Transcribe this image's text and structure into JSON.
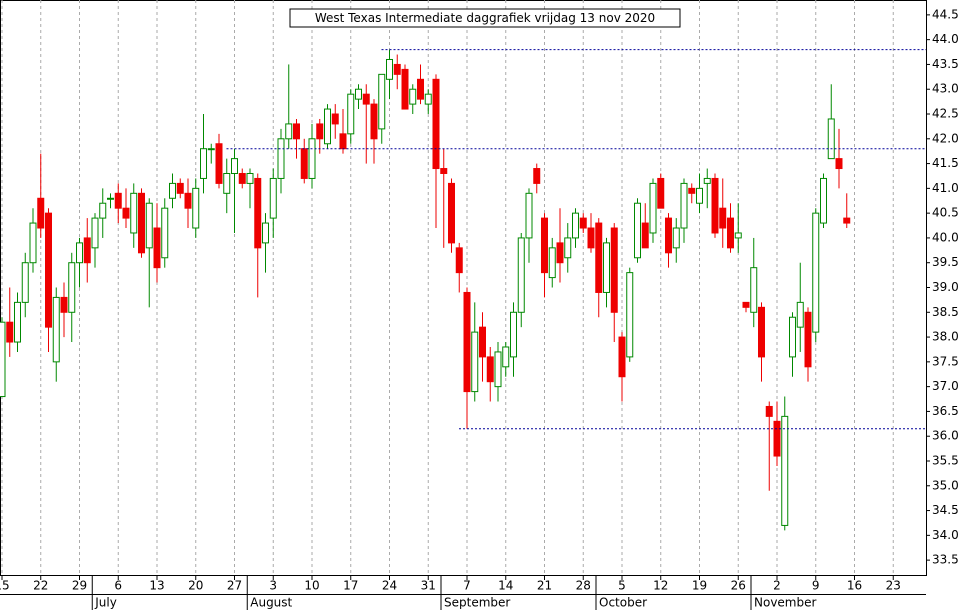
{
  "chart_data": {
    "type": "candlestick",
    "title": "West Texas Intermediate daggrafiek vrijdag 13 nov 2020",
    "categories": [
      "15",
      null,
      null,
      null,
      null,
      "22",
      null,
      null,
      null,
      null,
      "29",
      null,
      null,
      null,
      null,
      "6",
      null,
      null,
      null,
      null,
      "13",
      null,
      null,
      null,
      null,
      "20",
      null,
      null,
      null,
      null,
      "27",
      null,
      null,
      null,
      null,
      "3",
      null,
      null,
      null,
      null,
      "10",
      null,
      null,
      null,
      null,
      "17",
      null,
      null,
      null,
      null,
      "24",
      null,
      null,
      null,
      null,
      "31",
      null,
      null,
      null,
      null,
      "7",
      null,
      null,
      null,
      null,
      "14",
      null,
      null,
      null,
      null,
      "21",
      null,
      null,
      null,
      null,
      "28",
      null,
      null,
      null,
      null,
      "5",
      null,
      null,
      null,
      null,
      "12",
      null,
      null,
      null,
      null,
      "19",
      null,
      null,
      null,
      null,
      "26",
      null,
      null,
      null,
      null,
      "2",
      null,
      null,
      null,
      null,
      "9",
      null,
      null,
      null,
      null,
      "16",
      null,
      null,
      null,
      null,
      "23",
      null,
      null,
      null
    ],
    "months": [
      "July",
      "August",
      "September",
      "October",
      "November"
    ],
    "open": [
      36.8,
      38.3,
      37.9,
      38.7,
      39.5,
      40.8,
      40.5,
      37.5,
      38.8,
      38.5,
      39.5,
      40.0,
      39.8,
      40.4,
      40.8,
      40.9,
      40.6,
      40.1,
      40.9,
      39.8,
      40.2,
      39.6,
      40.8,
      41.1,
      40.9,
      40.2,
      41.2,
      41.8,
      41.9,
      40.9,
      41.3,
      41.3,
      41.1,
      41.2,
      39.9,
      40.4,
      41.2,
      42.0,
      42.3,
      41.8,
      41.2,
      42.3,
      41.9,
      42.5,
      42.1,
      42.1,
      42.8,
      42.9,
      42.7,
      42.2,
      43.2,
      43.5,
      43.4,
      42.7,
      43.2,
      42.7,
      43.2,
      41.4,
      41.1,
      39.8,
      38.9,
      36.9,
      38.2,
      37.6,
      37.0,
      37.4,
      37.6,
      38.5,
      40.0,
      41.4,
      40.4,
      39.2,
      39.9,
      39.6,
      40.0,
      40.4,
      40.2,
      40.3,
      38.9,
      40.2,
      38.0,
      37.6,
      39.6,
      40.3,
      40.1,
      41.2,
      40.4,
      39.8,
      40.2,
      41.0,
      40.7,
      41.1,
      41.2,
      40.6,
      40.4,
      40.0,
      38.7,
      38.5,
      38.6,
      36.6,
      36.3,
      34.2,
      37.6,
      38.2,
      38.5,
      38.1,
      40.3,
      41.6,
      41.6,
      40.4,
      null,
      null,
      null,
      null,
      null,
      null,
      null,
      null,
      null
    ],
    "high": [
      38.4,
      39.0,
      38.9,
      39.7,
      40.6,
      41.7,
      40.6,
      39.0,
      39.1,
      39.7,
      40.0,
      40.4,
      40.5,
      41.0,
      40.9,
      41.1,
      41.0,
      41.1,
      41.0,
      40.8,
      40.7,
      40.8,
      41.3,
      41.2,
      41.2,
      41.2,
      42.5,
      41.9,
      42.1,
      41.6,
      41.8,
      41.4,
      41.4,
      41.3,
      40.5,
      41.4,
      42.2,
      43.5,
      42.4,
      42.0,
      42.3,
      42.4,
      42.7,
      42.7,
      42.6,
      43.0,
      43.1,
      43.1,
      42.8,
      43.3,
      43.8,
      43.7,
      43.5,
      43.1,
      43.5,
      43.0,
      43.3,
      41.8,
      41.2,
      39.9,
      39.0,
      38.7,
      38.5,
      37.8,
      37.9,
      37.9,
      38.7,
      40.1,
      41.0,
      41.5,
      40.5,
      40.0,
      40.6,
      40.3,
      40.6,
      40.5,
      40.5,
      40.4,
      40.0,
      40.3,
      38.1,
      39.4,
      40.8,
      40.7,
      41.2,
      41.3,
      40.5,
      40.4,
      41.2,
      41.1,
      41.3,
      41.4,
      41.3,
      41.2,
      40.7,
      40.7,
      38.7,
      40.0,
      38.7,
      36.7,
      36.7,
      36.8,
      38.5,
      39.5,
      38.6,
      40.6,
      41.3,
      43.1,
      42.2,
      40.9,
      null,
      null,
      null,
      null,
      null,
      null,
      null,
      null,
      null
    ],
    "low": [
      36.8,
      37.6,
      37.7,
      38.4,
      39.3,
      40.0,
      37.7,
      37.1,
      38.0,
      37.9,
      39.0,
      39.1,
      39.4,
      40.0,
      40.6,
      40.3,
      40.2,
      39.8,
      39.6,
      38.6,
      39.1,
      39.4,
      40.6,
      40.8,
      40.2,
      40.0,
      40.9,
      41.5,
      41.0,
      40.5,
      40.1,
      41.0,
      40.6,
      38.8,
      39.3,
      40.0,
      40.9,
      41.8,
      41.6,
      41.1,
      41.0,
      41.7,
      41.8,
      42.0,
      41.7,
      41.9,
      42.6,
      41.5,
      41.5,
      41.9,
      42.8,
      43.0,
      42.6,
      42.5,
      42.7,
      42.5,
      40.2,
      39.8,
      39.7,
      38.9,
      36.15,
      36.7,
      37.1,
      36.7,
      36.7,
      37.2,
      37.2,
      38.2,
      39.5,
      40.9,
      38.8,
      39.0,
      39.1,
      39.3,
      39.8,
      40.1,
      39.7,
      38.4,
      38.6,
      37.9,
      36.7,
      37.5,
      39.5,
      39.8,
      39.9,
      40.6,
      39.4,
      39.5,
      39.9,
      40.7,
      40.5,
      40.6,
      40.0,
      39.8,
      39.7,
      39.7,
      38.5,
      38.2,
      37.1,
      34.9,
      35.4,
      34.1,
      37.2,
      37.7,
      37.1,
      37.9,
      40.2,
      41.6,
      41.0,
      40.2,
      null,
      null,
      null,
      null,
      null,
      null,
      null,
      null,
      null
    ],
    "close": [
      38.3,
      37.9,
      38.7,
      39.5,
      40.3,
      40.2,
      38.2,
      38.8,
      38.5,
      39.5,
      39.9,
      39.5,
      40.4,
      40.7,
      40.8,
      40.6,
      40.4,
      40.9,
      39.7,
      40.7,
      39.4,
      40.6,
      41.1,
      40.9,
      40.6,
      41.0,
      41.8,
      41.8,
      41.1,
      41.3,
      41.6,
      41.1,
      41.3,
      39.8,
      40.3,
      41.2,
      42.0,
      42.3,
      42.0,
      41.2,
      42.0,
      42.0,
      42.6,
      42.3,
      41.8,
      42.9,
      43.0,
      42.7,
      42.0,
      43.3,
      43.6,
      43.3,
      42.6,
      43.0,
      42.8,
      42.9,
      41.4,
      41.3,
      39.9,
      39.3,
      36.9,
      38.1,
      37.6,
      37.1,
      37.7,
      37.8,
      38.5,
      40.0,
      40.9,
      41.1,
      39.3,
      39.8,
      39.5,
      40.0,
      40.5,
      40.2,
      39.8,
      38.9,
      39.9,
      38.5,
      37.2,
      39.3,
      40.7,
      39.8,
      41.1,
      40.6,
      39.7,
      40.2,
      41.1,
      40.9,
      41.0,
      41.2,
      40.1,
      40.2,
      39.8,
      40.1,
      38.6,
      39.4,
      37.6,
      36.4,
      35.6,
      36.4,
      38.4,
      38.7,
      37.4,
      40.5,
      41.2,
      42.4,
      41.4,
      40.3,
      null,
      null,
      null,
      null,
      null,
      null,
      null,
      null,
      null
    ],
    "up_color": "#008800",
    "down_color": "#ee0000",
    "reference_lines": [
      43.8,
      41.8,
      36.15
    ],
    "reference_color": "#000099",
    "ylim": [
      33.2,
      44.8
    ],
    "yticks": [
      {
        "value": 33.5,
        "label": "33.5"
      },
      {
        "value": 34,
        "label": "34.0"
      },
      {
        "value": 34.5,
        "label": "34.5"
      },
      {
        "value": 35,
        "label": "35.0"
      },
      {
        "value": 35.5,
        "label": "35.5"
      },
      {
        "value": 36,
        "label": "36.0"
      },
      {
        "value": 36.5,
        "label": "36.5"
      },
      {
        "value": 37,
        "label": "37.0"
      },
      {
        "value": 37.5,
        "label": "37.5"
      },
      {
        "value": 38,
        "label": "38.0"
      },
      {
        "value": 38.5,
        "label": "38.5"
      },
      {
        "value": 39,
        "label": "39.0"
      },
      {
        "value": 39.5,
        "label": "39.5"
      },
      {
        "value": 40,
        "label": "40.0"
      },
      {
        "value": 40.5,
        "label": "40.5"
      },
      {
        "value": 41,
        "label": "41.0"
      },
      {
        "value": 41.5,
        "label": "41.5"
      },
      {
        "value": 42,
        "label": "42.0"
      },
      {
        "value": 42.5,
        "label": "42.5"
      },
      {
        "value": 43,
        "label": "43.0"
      },
      {
        "value": 43.5,
        "label": "43.5"
      },
      {
        "value": 44,
        "label": "44.0"
      },
      {
        "value": 44.5,
        "label": "44.5"
      }
    ],
    "grid": true
  }
}
